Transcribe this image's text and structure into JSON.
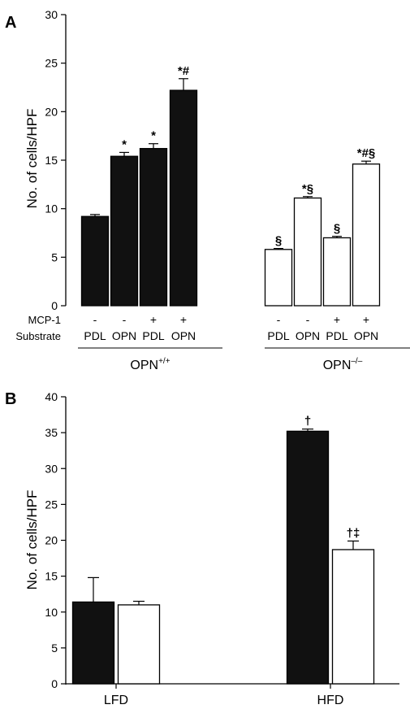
{
  "colors": {
    "wt": "#111111",
    "ko": "#ffffff",
    "axis": "#000000"
  },
  "chart_data": [
    {
      "panel": "A",
      "type": "bar",
      "ylabel": "No. of cells/HPF",
      "ylim": [
        0,
        30
      ],
      "yticks": [
        "0",
        "5",
        "10",
        "15",
        "20",
        "25",
        "30"
      ],
      "row_labels": {
        "mcp1": "MCP-1",
        "substrate": "Substrate"
      },
      "groups": [
        {
          "label": "OPN",
          "superscript": "+/+",
          "fill": "wt",
          "bars": [
            {
              "mcp1": "-",
              "substrate": "PDL",
              "value": 9.2,
              "error": 0.2,
              "sig": ""
            },
            {
              "mcp1": "-",
              "substrate": "OPN",
              "value": 15.4,
              "error": 0.4,
              "sig": "*"
            },
            {
              "mcp1": "+",
              "substrate": "PDL",
              "value": 16.2,
              "error": 0.5,
              "sig": "*"
            },
            {
              "mcp1": "+",
              "substrate": "OPN",
              "value": 22.2,
              "error": 1.2,
              "sig": "*#"
            }
          ]
        },
        {
          "label": "OPN",
          "superscript": "–/–",
          "fill": "ko",
          "bars": [
            {
              "mcp1": "-",
              "substrate": "PDL",
              "value": 5.8,
              "error": 0.1,
              "sig": "§"
            },
            {
              "mcp1": "-",
              "substrate": "OPN",
              "value": 11.1,
              "error": 0.15,
              "sig": "*§"
            },
            {
              "mcp1": "+",
              "substrate": "PDL",
              "value": 7.0,
              "error": 0.15,
              "sig": "§"
            },
            {
              "mcp1": "+",
              "substrate": "OPN",
              "value": 14.6,
              "error": 0.3,
              "sig": "*#§"
            }
          ]
        }
      ]
    },
    {
      "panel": "B",
      "type": "bar",
      "ylabel": "No. of cells/HPF",
      "ylim": [
        0,
        40
      ],
      "yticks": [
        "0",
        "5",
        "10",
        "15",
        "20",
        "25",
        "30",
        "35",
        "40"
      ],
      "categories": [
        "LFD",
        "HFD"
      ],
      "series": [
        {
          "fill": "wt",
          "values": [
            11.4,
            35.2
          ],
          "errors": [
            3.4,
            0.3
          ],
          "sig": [
            "",
            "†"
          ]
        },
        {
          "fill": "ko",
          "values": [
            11.0,
            18.7
          ],
          "errors": [
            0.5,
            1.2
          ],
          "sig": [
            "",
            "†‡"
          ]
        }
      ]
    }
  ]
}
